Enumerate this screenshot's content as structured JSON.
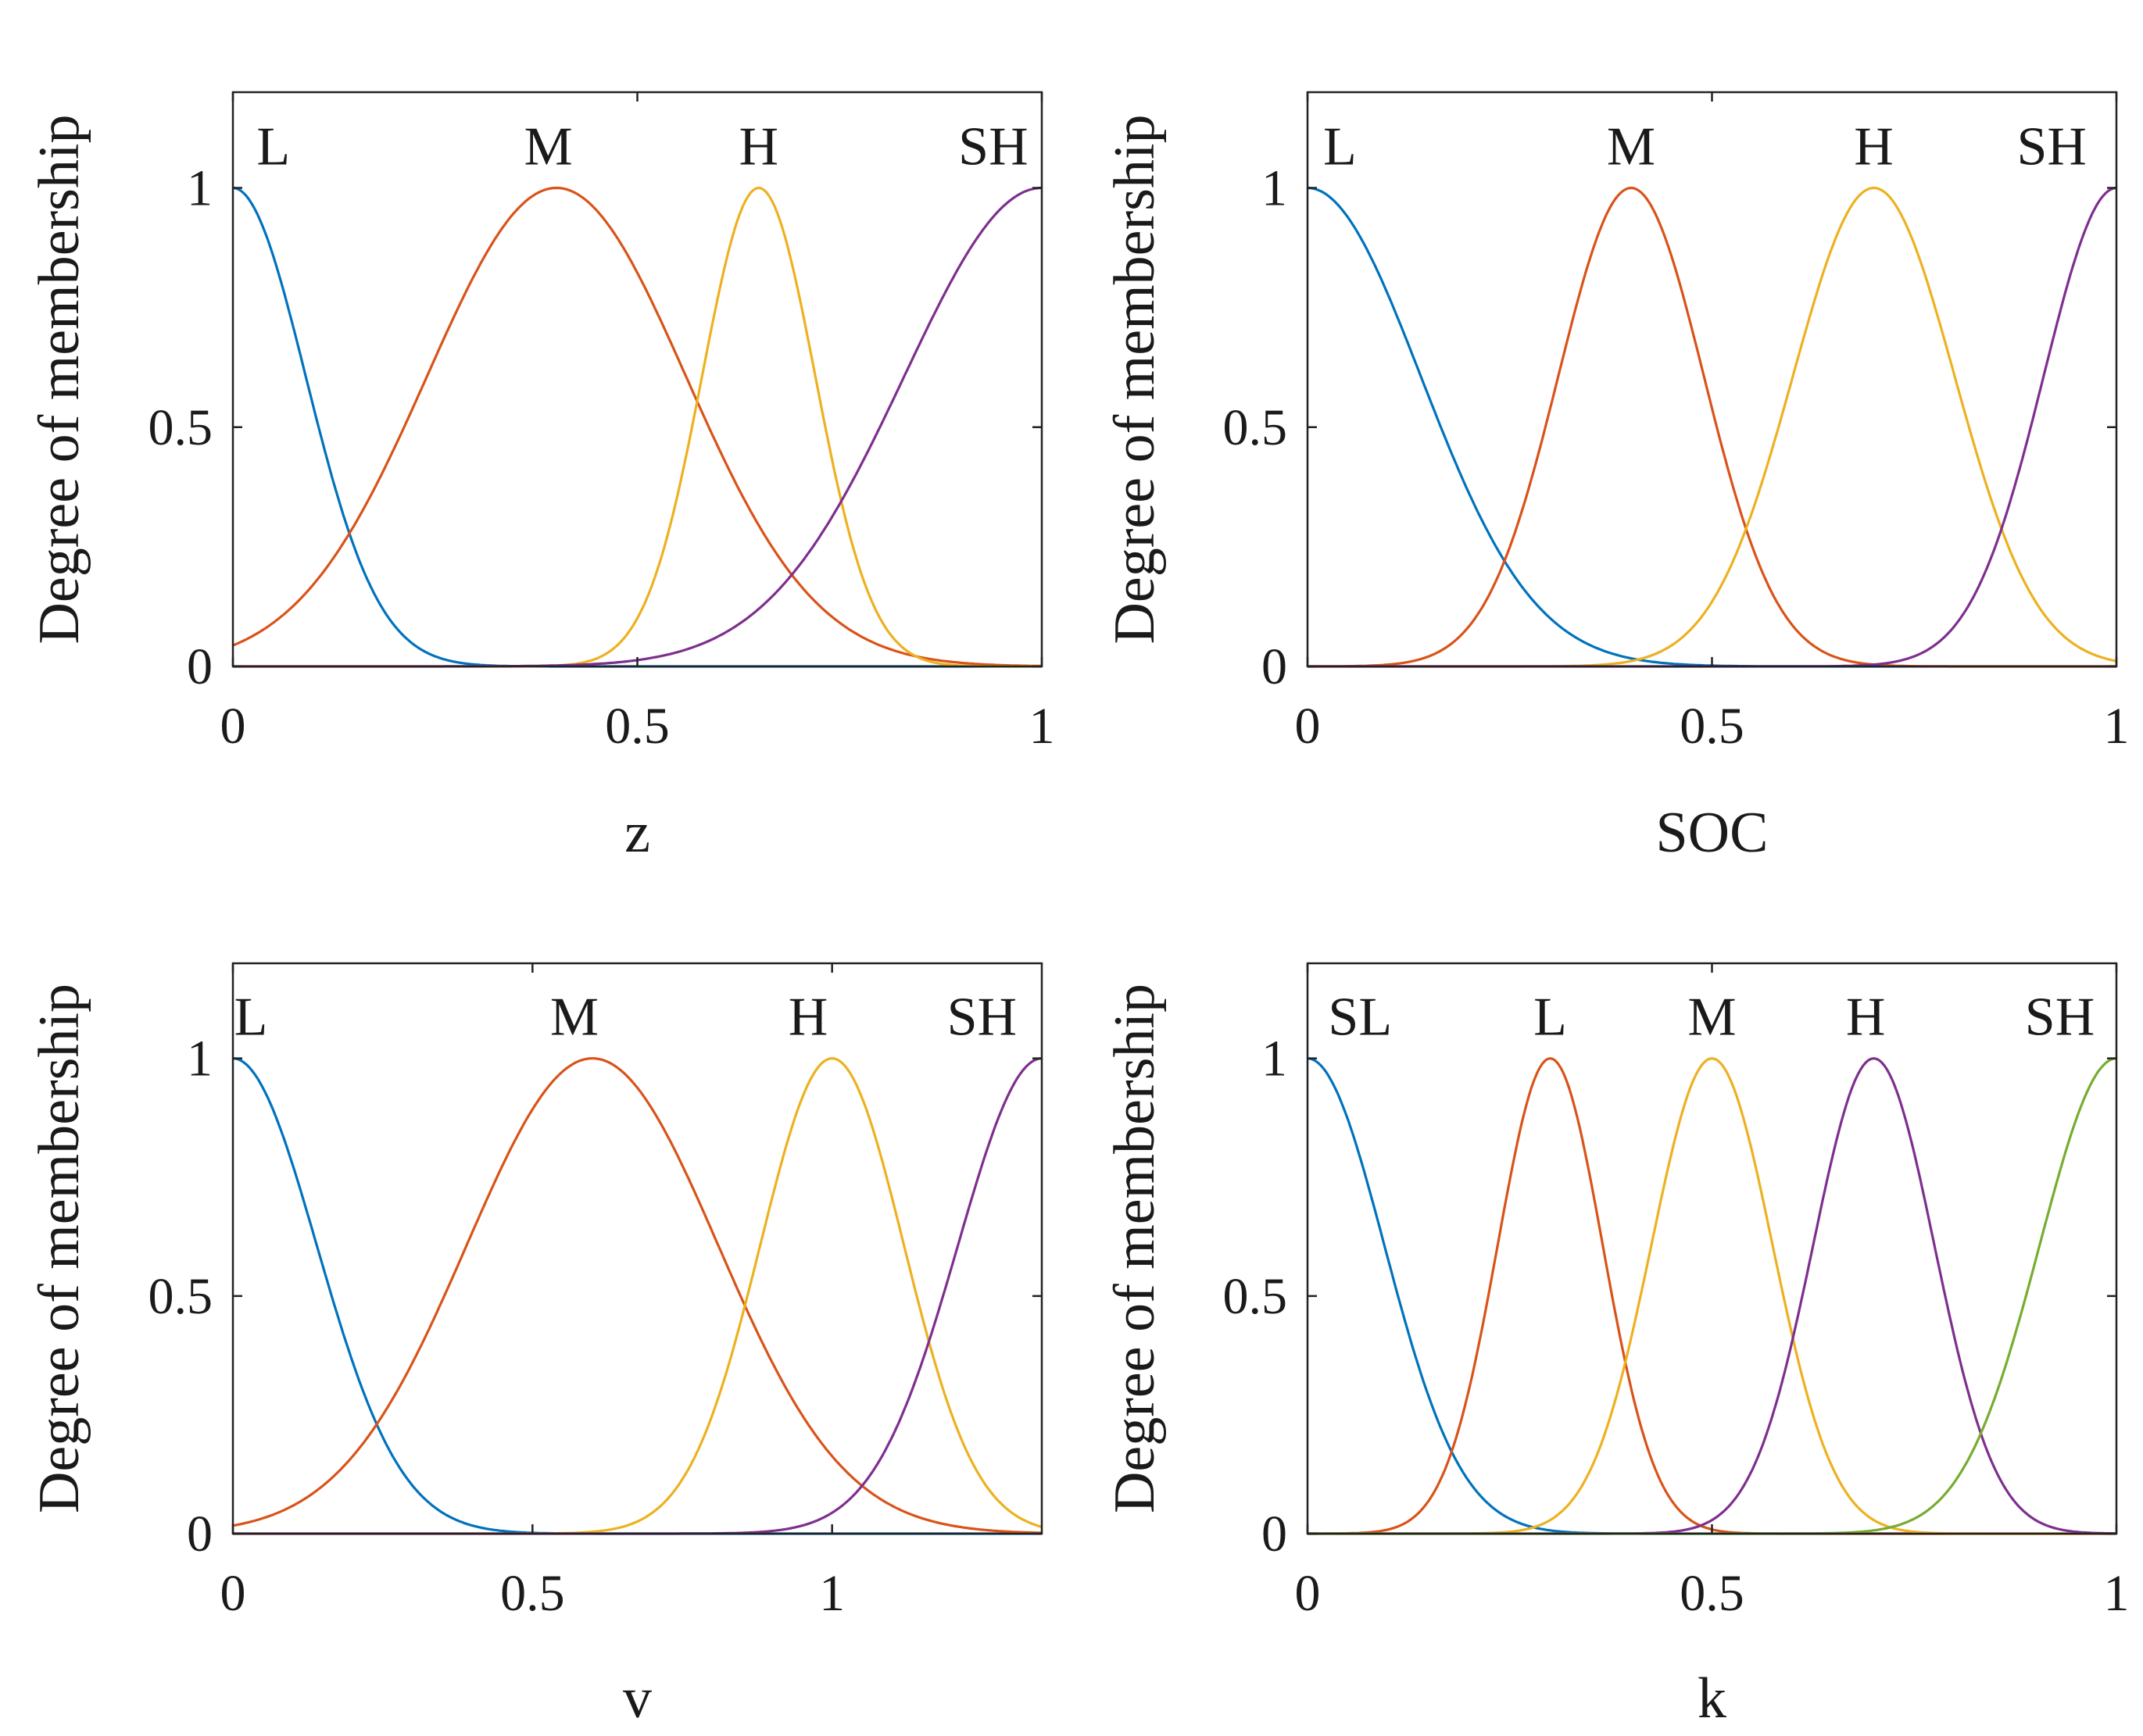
{
  "figure": {
    "palette": [
      "#0072BD",
      "#D95319",
      "#EDB120",
      "#7E2F8E",
      "#77AC30"
    ]
  },
  "chart_data": [
    {
      "type": "line",
      "xlabel": "z",
      "ylabel": "Degree of membership",
      "xlim": [
        0,
        1
      ],
      "ylim": [
        0,
        1.2
      ],
      "xticks": [
        0,
        0.5,
        1
      ],
      "xtick_labels": [
        "0",
        "0.5",
        "1"
      ],
      "yticks": [
        0,
        0.5,
        1
      ],
      "ytick_labels": [
        "0",
        "0.5",
        "1"
      ],
      "series": [
        {
          "name": "L",
          "mf": "gaussmf",
          "center": 0.0,
          "sigma": 0.09,
          "label_x": 0.05
        },
        {
          "name": "M",
          "mf": "gaussmf",
          "center": 0.4,
          "sigma": 0.16,
          "label_x": 0.39
        },
        {
          "name": "H",
          "mf": "gaussmf",
          "center": 0.65,
          "sigma": 0.07,
          "label_x": 0.65
        },
        {
          "name": "SH",
          "mf": "gaussmf",
          "center": 1.0,
          "sigma": 0.17,
          "label_x": 0.94
        }
      ]
    },
    {
      "type": "line",
      "xlabel": "SOC",
      "ylabel": "Degree of membership",
      "xlim": [
        0,
        1
      ],
      "ylim": [
        0,
        1.2
      ],
      "xticks": [
        0,
        0.5,
        1
      ],
      "xtick_labels": [
        "0",
        "0.5",
        "1"
      ],
      "yticks": [
        0,
        0.5,
        1
      ],
      "ytick_labels": [
        "0",
        "0.5",
        "1"
      ],
      "series": [
        {
          "name": "L",
          "mf": "gaussmf",
          "center": 0.0,
          "sigma": 0.14,
          "label_x": 0.04
        },
        {
          "name": "M",
          "mf": "gaussmf",
          "center": 0.4,
          "sigma": 0.09,
          "label_x": 0.4
        },
        {
          "name": "H",
          "mf": "gaussmf",
          "center": 0.7,
          "sigma": 0.1,
          "label_x": 0.7
        },
        {
          "name": "SH",
          "mf": "gaussmf",
          "center": 1.0,
          "sigma": 0.09,
          "label_x": 0.92
        }
      ]
    },
    {
      "type": "line",
      "xlabel": "v",
      "ylabel": "Degree of membership",
      "xlim": [
        0,
        1.35
      ],
      "ylim": [
        0,
        1.2
      ],
      "xticks": [
        0,
        0.5,
        1
      ],
      "xtick_labels": [
        "0",
        "0.5",
        "1"
      ],
      "yticks": [
        0,
        0.5,
        1
      ],
      "ytick_labels": [
        "0",
        "0.5",
        "1"
      ],
      "series": [
        {
          "name": "L",
          "mf": "gaussmf",
          "center": 0.0,
          "sigma": 0.14,
          "label_x": 0.03
        },
        {
          "name": "M",
          "mf": "gaussmf",
          "center": 0.6,
          "sigma": 0.21,
          "label_x": 0.57
        },
        {
          "name": "H",
          "mf": "gaussmf",
          "center": 1.0,
          "sigma": 0.12,
          "label_x": 0.96
        },
        {
          "name": "SH",
          "mf": "gaussmf",
          "center": 1.35,
          "sigma": 0.14,
          "label_x": 1.25
        }
      ]
    },
    {
      "type": "line",
      "xlabel": "k",
      "ylabel": "Degree of membership",
      "xlim": [
        0,
        1
      ],
      "ylim": [
        0,
        1.2
      ],
      "xticks": [
        0,
        0.5,
        1
      ],
      "xtick_labels": [
        "0",
        "0.5",
        "1"
      ],
      "yticks": [
        0,
        0.5,
        1
      ],
      "ytick_labels": [
        "0",
        "0.5",
        "1"
      ],
      "series": [
        {
          "name": "SL",
          "mf": "gaussmf",
          "center": 0.0,
          "sigma": 0.095,
          "label_x": 0.065
        },
        {
          "name": "L",
          "mf": "gaussmf",
          "center": 0.3,
          "sigma": 0.065,
          "label_x": 0.3
        },
        {
          "name": "M",
          "mf": "gaussmf",
          "center": 0.5,
          "sigma": 0.075,
          "label_x": 0.5
        },
        {
          "name": "H",
          "mf": "gaussmf",
          "center": 0.7,
          "sigma": 0.075,
          "label_x": 0.69
        },
        {
          "name": "SH",
          "mf": "gaussmf",
          "center": 1.0,
          "sigma": 0.095,
          "label_x": 0.93
        }
      ]
    }
  ]
}
